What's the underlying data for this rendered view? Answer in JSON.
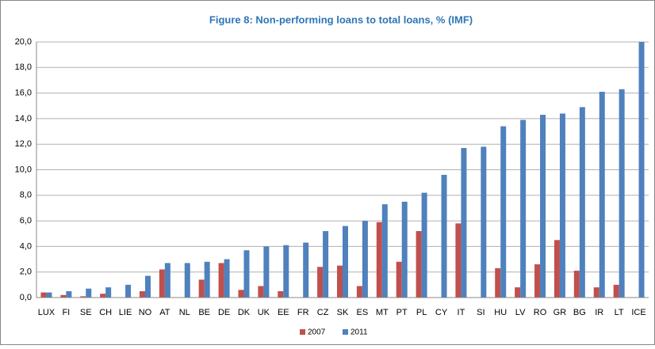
{
  "chart_data": {
    "type": "bar",
    "title": "Figure 8: Non-performing loans to total loans, % (IMF)",
    "categories": [
      "LUX",
      "FI",
      "SE",
      "CH",
      "LIE",
      "NO",
      "AT",
      "NL",
      "BE",
      "DE",
      "DK",
      "UK",
      "EE",
      "FR",
      "CZ",
      "SK",
      "ES",
      "MT",
      "PT",
      "PL",
      "CY",
      "IT",
      "SI",
      "HU",
      "LV",
      "RO",
      "GR",
      "BG",
      "IR",
      "LT",
      "ICE"
    ],
    "series": [
      {
        "name": "2007",
        "color": "#c0504d",
        "values": [
          0.4,
          0.2,
          0.1,
          0.3,
          null,
          0.5,
          2.2,
          null,
          1.4,
          2.7,
          0.6,
          0.9,
          0.5,
          null,
          2.4,
          2.5,
          0.9,
          5.9,
          2.8,
          5.2,
          null,
          5.8,
          null,
          2.3,
          0.8,
          2.6,
          4.5,
          2.1,
          0.8,
          1.0,
          null
        ]
      },
      {
        "name": "2011",
        "color": "#4f81bd",
        "values": [
          0.4,
          0.5,
          0.7,
          0.8,
          1.0,
          1.7,
          2.7,
          2.7,
          2.8,
          3.0,
          3.7,
          4.0,
          4.1,
          4.3,
          5.2,
          5.6,
          6.0,
          7.3,
          7.5,
          8.2,
          9.6,
          11.7,
          11.8,
          13.4,
          13.9,
          14.3,
          14.4,
          14.9,
          16.1,
          16.3,
          20.0
        ]
      }
    ],
    "ylim": [
      0,
      20
    ],
    "yticks": [
      {
        "value": 0,
        "label": "0,0"
      },
      {
        "value": 2,
        "label": "2,0"
      },
      {
        "value": 4,
        "label": "4,0"
      },
      {
        "value": 6,
        "label": "6,0"
      },
      {
        "value": 8,
        "label": "8,0"
      },
      {
        "value": 10,
        "label": "10,0"
      },
      {
        "value": 12,
        "label": "12,0"
      },
      {
        "value": 14,
        "label": "14,0"
      },
      {
        "value": 16,
        "label": "16,0"
      },
      {
        "value": 18,
        "label": "18,0"
      },
      {
        "value": 20,
        "label": "20,0"
      }
    ],
    "grid": true,
    "legend": "bottom"
  }
}
